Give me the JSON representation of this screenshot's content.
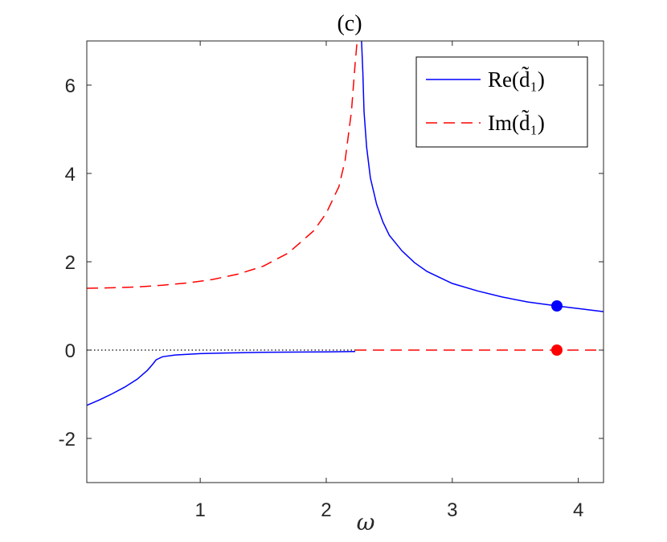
{
  "chart_data": {
    "type": "line",
    "title": "(c)",
    "xlabel": "ω",
    "ylabel": "",
    "xlim": [
      0.1,
      4.2
    ],
    "ylim": [
      -3,
      7
    ],
    "xticks": [
      1,
      2,
      3,
      4
    ],
    "yticks": [
      -2,
      0,
      2,
      4,
      6
    ],
    "xtick_labels": [
      "1",
      "2",
      "3",
      "4"
    ],
    "ytick_labels": [
      "-2",
      "0",
      "2",
      "4",
      "6"
    ],
    "grid": false,
    "legend_position": "top-right",
    "series": [
      {
        "name": "Re(d̃₁)",
        "color": "#0000ff",
        "style": "solid",
        "segments": [
          [
            [
              0.1,
              -1.25
            ],
            [
              0.2,
              -1.13
            ],
            [
              0.3,
              -0.99
            ],
            [
              0.4,
              -0.84
            ],
            [
              0.5,
              -0.66
            ],
            [
              0.58,
              -0.46
            ],
            [
              0.62,
              -0.33
            ],
            [
              0.65,
              -0.22
            ],
            [
              0.7,
              -0.15
            ],
            [
              0.8,
              -0.11
            ],
            [
              1.0,
              -0.08
            ],
            [
              1.2,
              -0.065
            ],
            [
              1.5,
              -0.05
            ],
            [
              2.0,
              -0.04
            ],
            [
              2.23,
              -0.03
            ]
          ],
          [
            [
              2.28,
              7.0
            ],
            [
              2.29,
              6.3
            ],
            [
              2.3,
              5.4
            ],
            [
              2.32,
              4.6
            ],
            [
              2.35,
              3.9
            ],
            [
              2.4,
              3.3
            ],
            [
              2.45,
              2.9
            ],
            [
              2.5,
              2.6
            ],
            [
              2.6,
              2.25
            ],
            [
              2.7,
              1.98
            ],
            [
              2.8,
              1.78
            ],
            [
              3.0,
              1.51
            ],
            [
              3.2,
              1.34
            ],
            [
              3.4,
              1.2
            ],
            [
              3.6,
              1.09
            ],
            [
              3.83,
              1.0
            ],
            [
              4.0,
              0.94
            ],
            [
              4.2,
              0.87
            ]
          ]
        ]
      },
      {
        "name": "Im(d̃₁)",
        "color": "#ff0000",
        "style": "dashed",
        "segments": [
          [
            [
              0.1,
              1.4
            ],
            [
              0.3,
              1.41
            ],
            [
              0.5,
              1.43
            ],
            [
              0.7,
              1.47
            ],
            [
              0.9,
              1.52
            ],
            [
              1.1,
              1.6
            ],
            [
              1.3,
              1.72
            ],
            [
              1.5,
              1.9
            ],
            [
              1.7,
              2.2
            ],
            [
              1.9,
              2.7
            ],
            [
              2.0,
              3.1
            ],
            [
              2.1,
              3.7
            ],
            [
              2.15,
              4.3
            ],
            [
              2.2,
              5.4
            ],
            [
              2.23,
              6.5
            ],
            [
              2.245,
              7.0
            ]
          ],
          [
            [
              2.23,
              0.0
            ],
            [
              4.2,
              0.0
            ]
          ]
        ]
      },
      {
        "name": "",
        "color": "#000000",
        "style": "dotted",
        "segments": [
          [
            [
              0.1,
              0.0
            ],
            [
              2.23,
              0.0
            ]
          ]
        ]
      }
    ],
    "markers": [
      {
        "x": 3.83,
        "y": 1.0,
        "color": "#0000ff"
      },
      {
        "x": 3.83,
        "y": 0.0,
        "color": "#ff0000"
      }
    ],
    "legend": [
      {
        "label": "Re(d̃₁)",
        "color": "#0000ff",
        "style": "solid"
      },
      {
        "label": "Im(d̃₁)",
        "color": "#ff0000",
        "style": "dashed"
      }
    ]
  }
}
